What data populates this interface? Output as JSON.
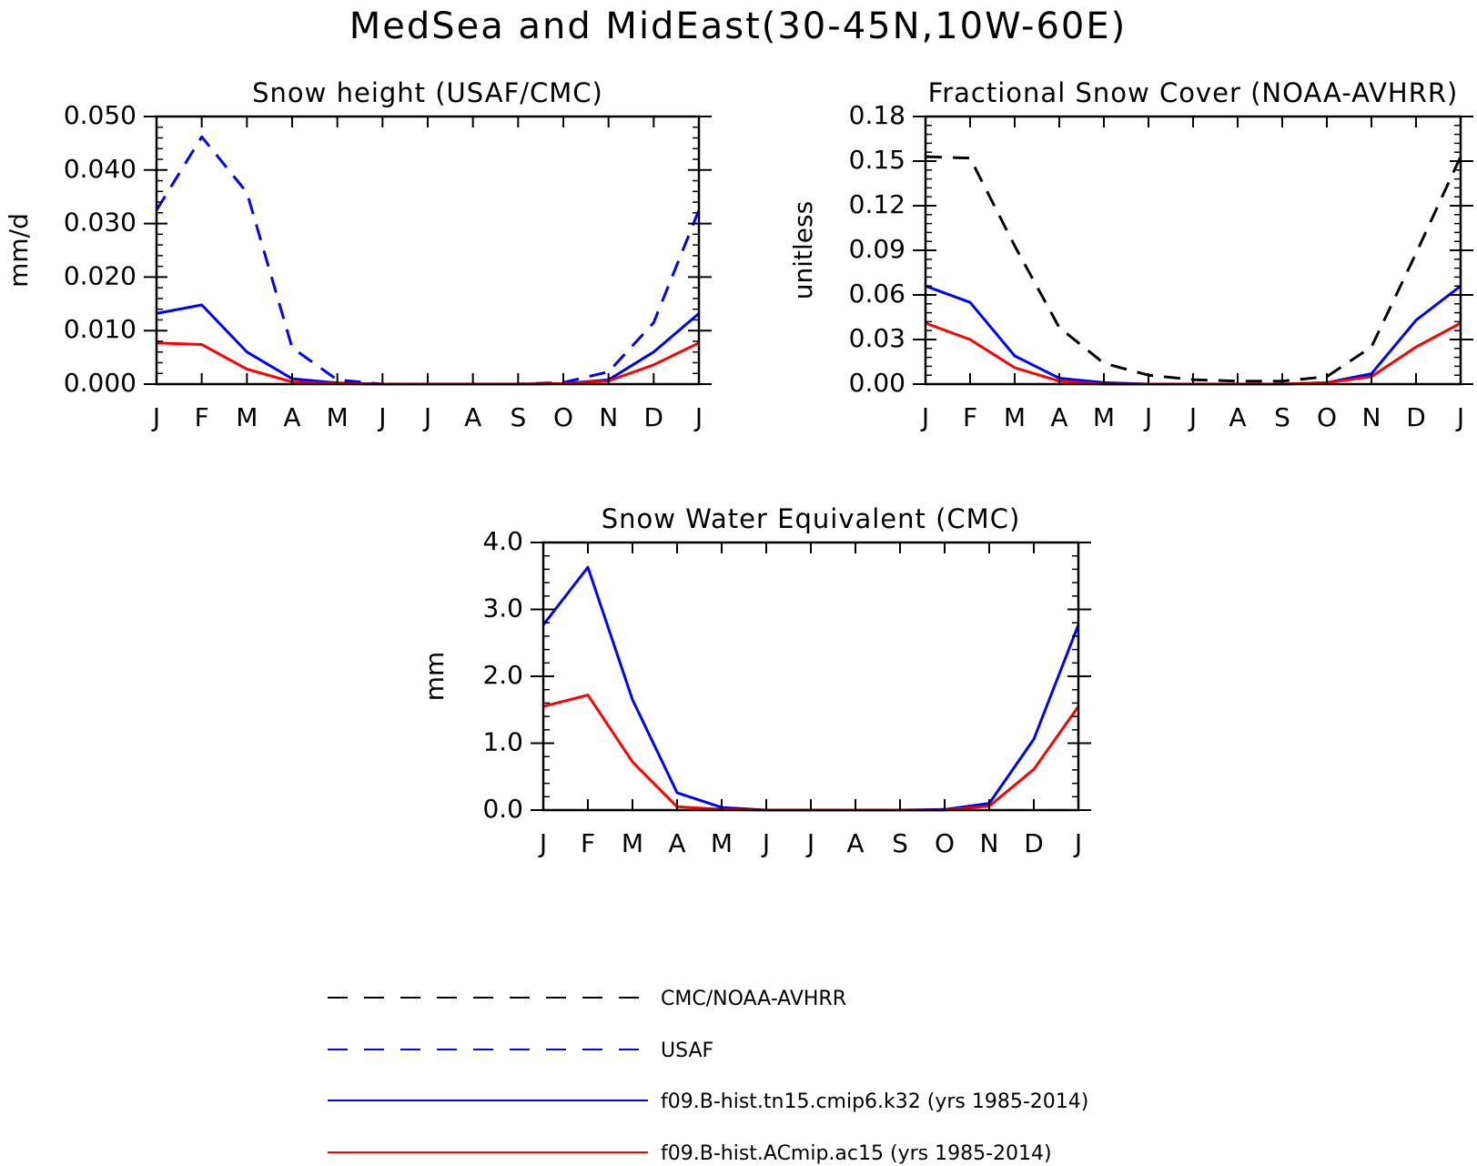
{
  "figure": {
    "title": "MedSea and MidEast(30-45N,10W-60E)"
  },
  "chart_data": [
    {
      "type": "line",
      "title": "Snow height (USAF/CMC)",
      "xlabel": "",
      "ylabel": "mm/d",
      "categories": [
        "J",
        "F",
        "M",
        "A",
        "M",
        "J",
        "J",
        "A",
        "S",
        "O",
        "N",
        "D",
        "J"
      ],
      "ylim": [
        0,
        0.05
      ],
      "yticks": [
        "0.000",
        "0.010",
        "0.020",
        "0.030",
        "0.040",
        "0.050"
      ],
      "series": [
        {
          "name": "USAF",
          "color": "#0000ff",
          "dash": true,
          "values": [
            0.0325,
            0.0462,
            0.0358,
            0.0068,
            0.0008,
            0.0,
            0.0,
            0.0,
            0.0,
            0.0003,
            0.0023,
            0.0115,
            0.0325
          ]
        },
        {
          "name": "f09.B-hist.tn15.cmip6.k32 (yrs 1985-2014)",
          "color": "#0000ff",
          "dash": false,
          "values": [
            0.0132,
            0.0148,
            0.006,
            0.001,
            0.0002,
            0.0,
            0.0,
            0.0,
            0.0,
            0.0001,
            0.0008,
            0.006,
            0.0132
          ]
        },
        {
          "name": "f09.B-hist.ACmip.ac15 (yrs 1985-2014)",
          "color": "#ff0000",
          "dash": false,
          "values": [
            0.0077,
            0.0074,
            0.0028,
            0.0004,
            0.0001,
            0.0,
            0.0,
            0.0,
            0.0,
            0.0001,
            0.0006,
            0.0036,
            0.0077
          ]
        }
      ]
    },
    {
      "type": "line",
      "title": "Fractional Snow Cover (NOAA-AVHRR)",
      "xlabel": "",
      "ylabel": "unitless",
      "categories": [
        "J",
        "F",
        "M",
        "A",
        "M",
        "J",
        "J",
        "A",
        "S",
        "O",
        "N",
        "D",
        "J"
      ],
      "ylim": [
        0,
        0.18
      ],
      "yticks": [
        "0.00",
        "0.03",
        "0.06",
        "0.09",
        "0.12",
        "0.15",
        "0.18"
      ],
      "series": [
        {
          "name": "CMC/NOAA-AVHRR",
          "color": "#000000",
          "dash": true,
          "values": [
            0.153,
            0.152,
            0.093,
            0.038,
            0.014,
            0.006,
            0.003,
            0.002,
            0.002,
            0.005,
            0.025,
            0.088,
            0.153
          ]
        },
        {
          "name": "f09.B-hist.tn15.cmip6.k32 (yrs 1985-2014)",
          "color": "#0000ff",
          "dash": false,
          "values": [
            0.066,
            0.055,
            0.019,
            0.004,
            0.001,
            0.0,
            0.0,
            0.0,
            0.0,
            0.001,
            0.007,
            0.043,
            0.066
          ]
        },
        {
          "name": "f09.B-hist.ACmip.ac15 (yrs 1985-2014)",
          "color": "#ff0000",
          "dash": false,
          "values": [
            0.041,
            0.03,
            0.011,
            0.002,
            0.0,
            0.0,
            0.0,
            0.0,
            0.0,
            0.001,
            0.005,
            0.025,
            0.041
          ]
        }
      ]
    },
    {
      "type": "line",
      "title": "Snow Water Equivalent (CMC)",
      "xlabel": "",
      "ylabel": "mm",
      "categories": [
        "J",
        "F",
        "M",
        "A",
        "M",
        "J",
        "J",
        "A",
        "S",
        "O",
        "N",
        "D",
        "J"
      ],
      "ylim": [
        0,
        4.0
      ],
      "yticks": [
        "0.0",
        "1.0",
        "2.0",
        "3.0",
        "4.0"
      ],
      "series": [
        {
          "name": "f09.B-hist.tn15.cmip6.k32 (yrs 1985-2014)",
          "color": "#0000ff",
          "dash": false,
          "values": [
            2.77,
            3.63,
            1.65,
            0.26,
            0.04,
            0.0,
            0.0,
            0.0,
            0.0,
            0.01,
            0.1,
            1.06,
            2.77
          ]
        },
        {
          "name": "f09.B-hist.ACmip.ac15 (yrs 1985-2014)",
          "color": "#ff0000",
          "dash": false,
          "values": [
            1.55,
            1.72,
            0.72,
            0.05,
            0.01,
            0.0,
            0.0,
            0.0,
            0.0,
            0.0,
            0.06,
            0.61,
            1.55
          ]
        }
      ]
    }
  ],
  "legend": [
    {
      "label": "CMC/NOAA-AVHRR",
      "color": "#000000",
      "dash": true
    },
    {
      "label": "USAF",
      "color": "#0000ff",
      "dash": true
    },
    {
      "label": "f09.B-hist.tn15.cmip6.k32 (yrs 1985-2014)",
      "color": "#0000ff",
      "dash": false
    },
    {
      "label": "f09.B-hist.ACmip.ac15 (yrs 1985-2014)",
      "color": "#ff0000",
      "dash": false
    }
  ]
}
